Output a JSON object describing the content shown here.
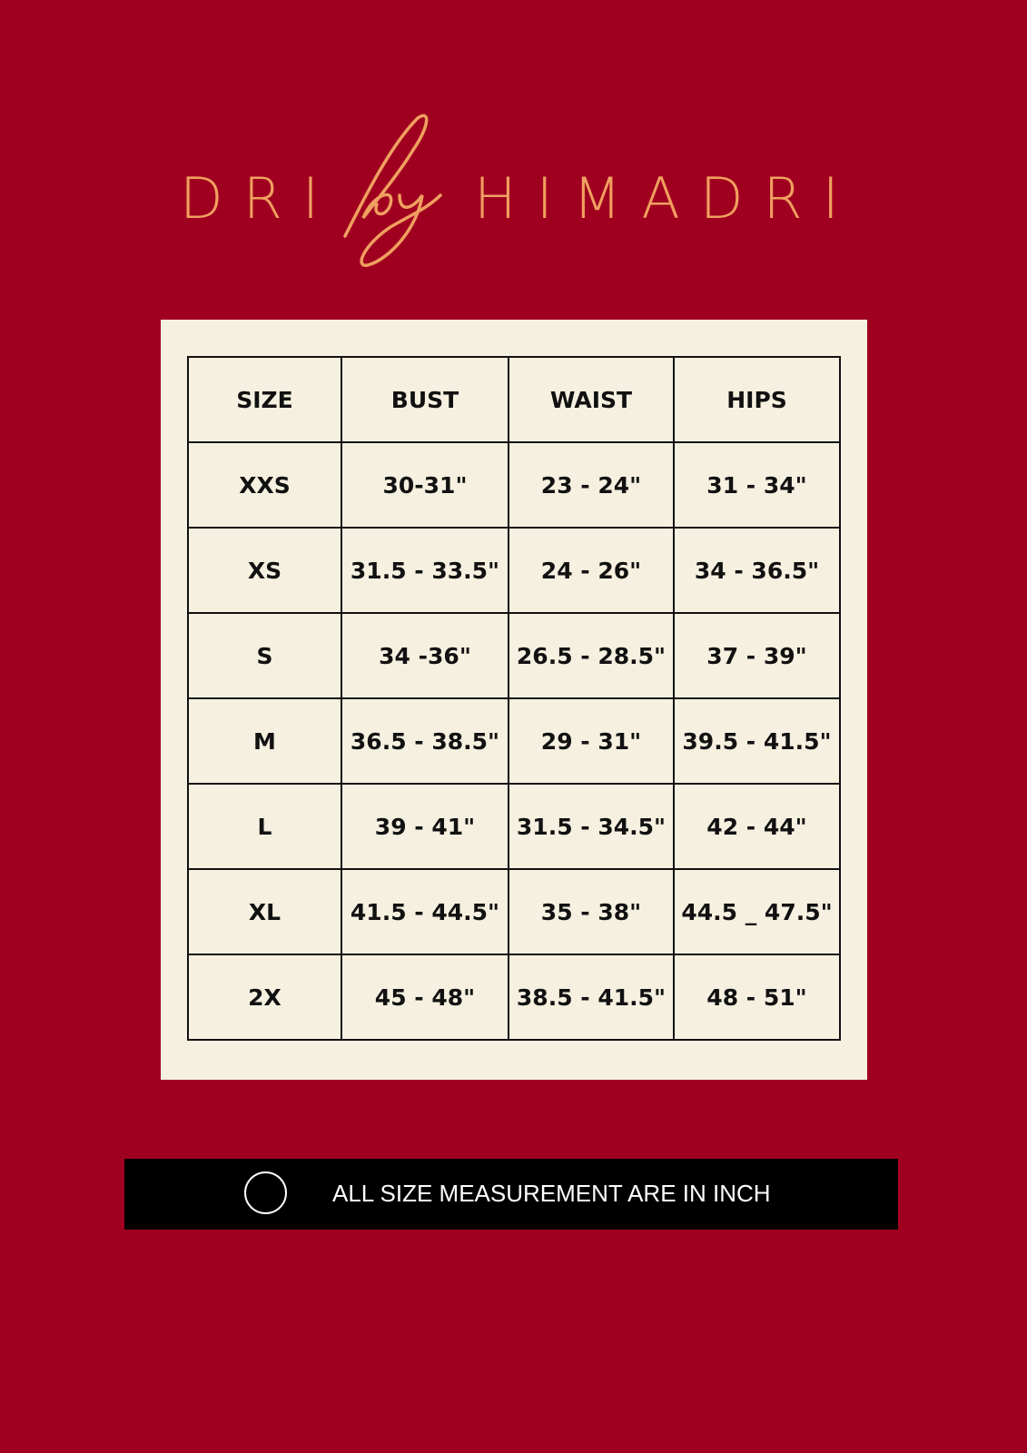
{
  "brand": {
    "left": "DRI",
    "script": "by",
    "right": "HIMADRI",
    "color": "#f0a060"
  },
  "table": {
    "headers": [
      "SIZE",
      "BUST",
      "WAIST",
      "HIPS"
    ],
    "rows": [
      [
        "XXS",
        "30-31\"",
        "23 - 24\"",
        "31 - 34\""
      ],
      [
        "XS",
        "31.5 - 33.5\"",
        "24 - 26\"",
        "34 - 36.5\""
      ],
      [
        "S",
        "34 -36\"",
        "26.5 - 28.5\"",
        "37 - 39\""
      ],
      [
        "M",
        "36.5 - 38.5\"",
        "29 - 31\"",
        "39.5 - 41.5\""
      ],
      [
        "L",
        "39 - 41\"",
        "31.5 - 34.5\"",
        "42 - 44\""
      ],
      [
        "XL",
        "41.5 - 44.5\"",
        "35 - 38\"",
        "44.5 _ 47.5\""
      ],
      [
        "2X",
        "45 - 48\"",
        "38.5 - 41.5\"",
        "48 - 51\""
      ]
    ]
  },
  "note": {
    "icon": "circle-icon",
    "text": "ALL SIZE MEASUREMENT ARE IN INCH"
  },
  "colors": {
    "background": "#a0001f",
    "card": "#f5f0e0",
    "note_bar": "#000000"
  }
}
